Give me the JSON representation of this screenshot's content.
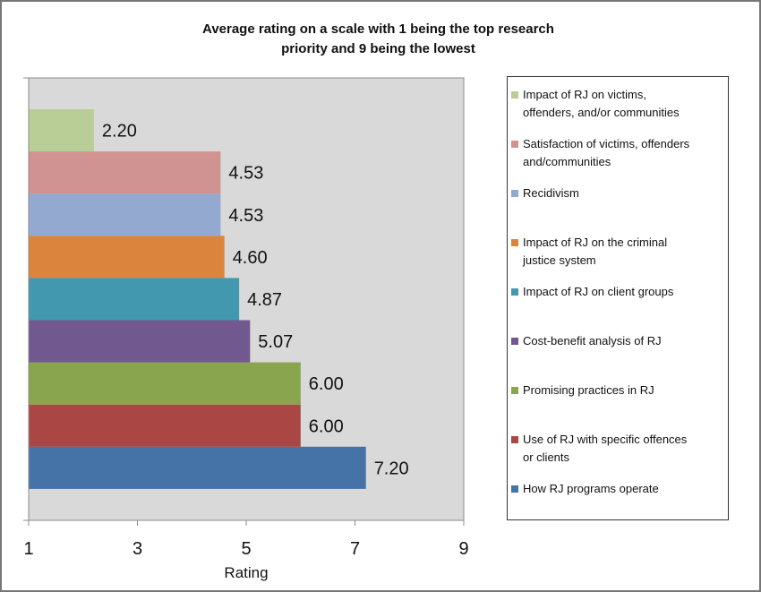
{
  "title_line1": "Average rating on a scale with 1 being the top research",
  "title_line2": "priority and 9 being the lowest",
  "chart_data": {
    "type": "bar",
    "orientation": "horizontal",
    "title": "Average rating on a scale with 1 being the top research priority and 9 being the lowest",
    "xlabel": "Rating",
    "ylabel": "",
    "xlim": [
      1,
      9
    ],
    "xticks": [
      1,
      3,
      5,
      7,
      9
    ],
    "grid": false,
    "legend_position": "right",
    "categories": [
      "How RJ programs operate",
      "Use of RJ with specific offences or clients",
      "Promising practices in RJ",
      "Cost-benefit analysis of RJ",
      "Impact of RJ on client groups",
      "Impact of RJ on the criminal justice system",
      "Recidivism",
      "Satisfaction of victims, offenders and/communities",
      "Impact of RJ on victims, offenders, and/or communities"
    ],
    "values": [
      7.2,
      6.0,
      6.0,
      5.07,
      4.87,
      4.6,
      4.53,
      4.53,
      2.2
    ],
    "value_labels": [
      "7.20",
      "6.00",
      "6.00",
      "5.07",
      "4.87",
      "4.60",
      "4.53",
      "4.53",
      "2.20"
    ],
    "colors": [
      "#4572A7",
      "#AA4643",
      "#89A54E",
      "#71588F",
      "#4198AF",
      "#DB843D",
      "#93A9CF",
      "#D19392",
      "#B9CD96"
    ]
  },
  "legend": [
    {
      "label1": "Impact of RJ on victims,",
      "label2": "offenders, and/or communities",
      "color": "#B9CD96"
    },
    {
      "label1": "Satisfaction of victims, offenders",
      "label2": "and/communities",
      "color": "#D19392"
    },
    {
      "label1": "Recidivism",
      "label2": "",
      "color": "#93A9CF"
    },
    {
      "label1": "Impact of RJ on the criminal",
      "label2": "justice system",
      "color": "#DB843D"
    },
    {
      "label1": "Impact of RJ on client groups",
      "label2": "",
      "color": "#4198AF"
    },
    {
      "label1": "Cost-benefit analysis of RJ",
      "label2": "",
      "color": "#71588F"
    },
    {
      "label1": "Promising practices in RJ",
      "label2": "",
      "color": "#89A54E"
    },
    {
      "label1": "Use of RJ with specific offences",
      "label2": "or clients",
      "color": "#AA4643"
    },
    {
      "label1": "How RJ programs operate",
      "label2": "",
      "color": "#4572A7"
    }
  ]
}
